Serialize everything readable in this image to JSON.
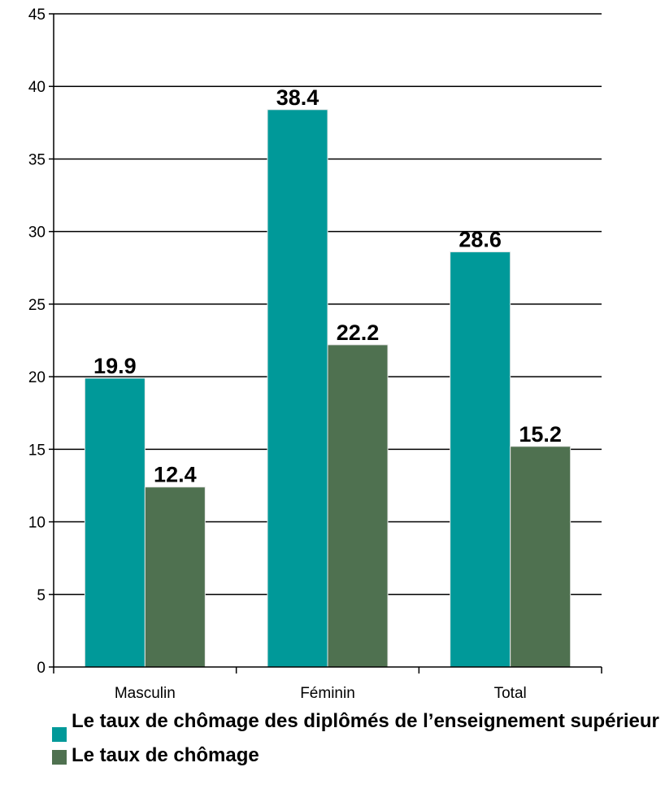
{
  "chart_data": {
    "type": "bar",
    "categories": [
      "Masculin",
      "Féminin",
      "Total"
    ],
    "series": [
      {
        "name": "Le taux de chômage des diplômés de l’enseignement supérieur",
        "values": [
          19.9,
          38.4,
          28.6
        ],
        "labels": [
          "19.9",
          "38.4",
          "28.6"
        ],
        "color": "#009999"
      },
      {
        "name": "Le taux de chômage",
        "values": [
          12.4,
          22.2,
          15.2
        ],
        "labels": [
          "12.4",
          "22.2",
          "15.2"
        ],
        "color": "#4f7150"
      }
    ],
    "yticks": [
      0,
      5,
      10,
      15,
      20,
      25,
      30,
      35,
      40,
      45
    ],
    "ylim": [
      0,
      45
    ],
    "grid": true,
    "legend_position": "bottom-left"
  }
}
